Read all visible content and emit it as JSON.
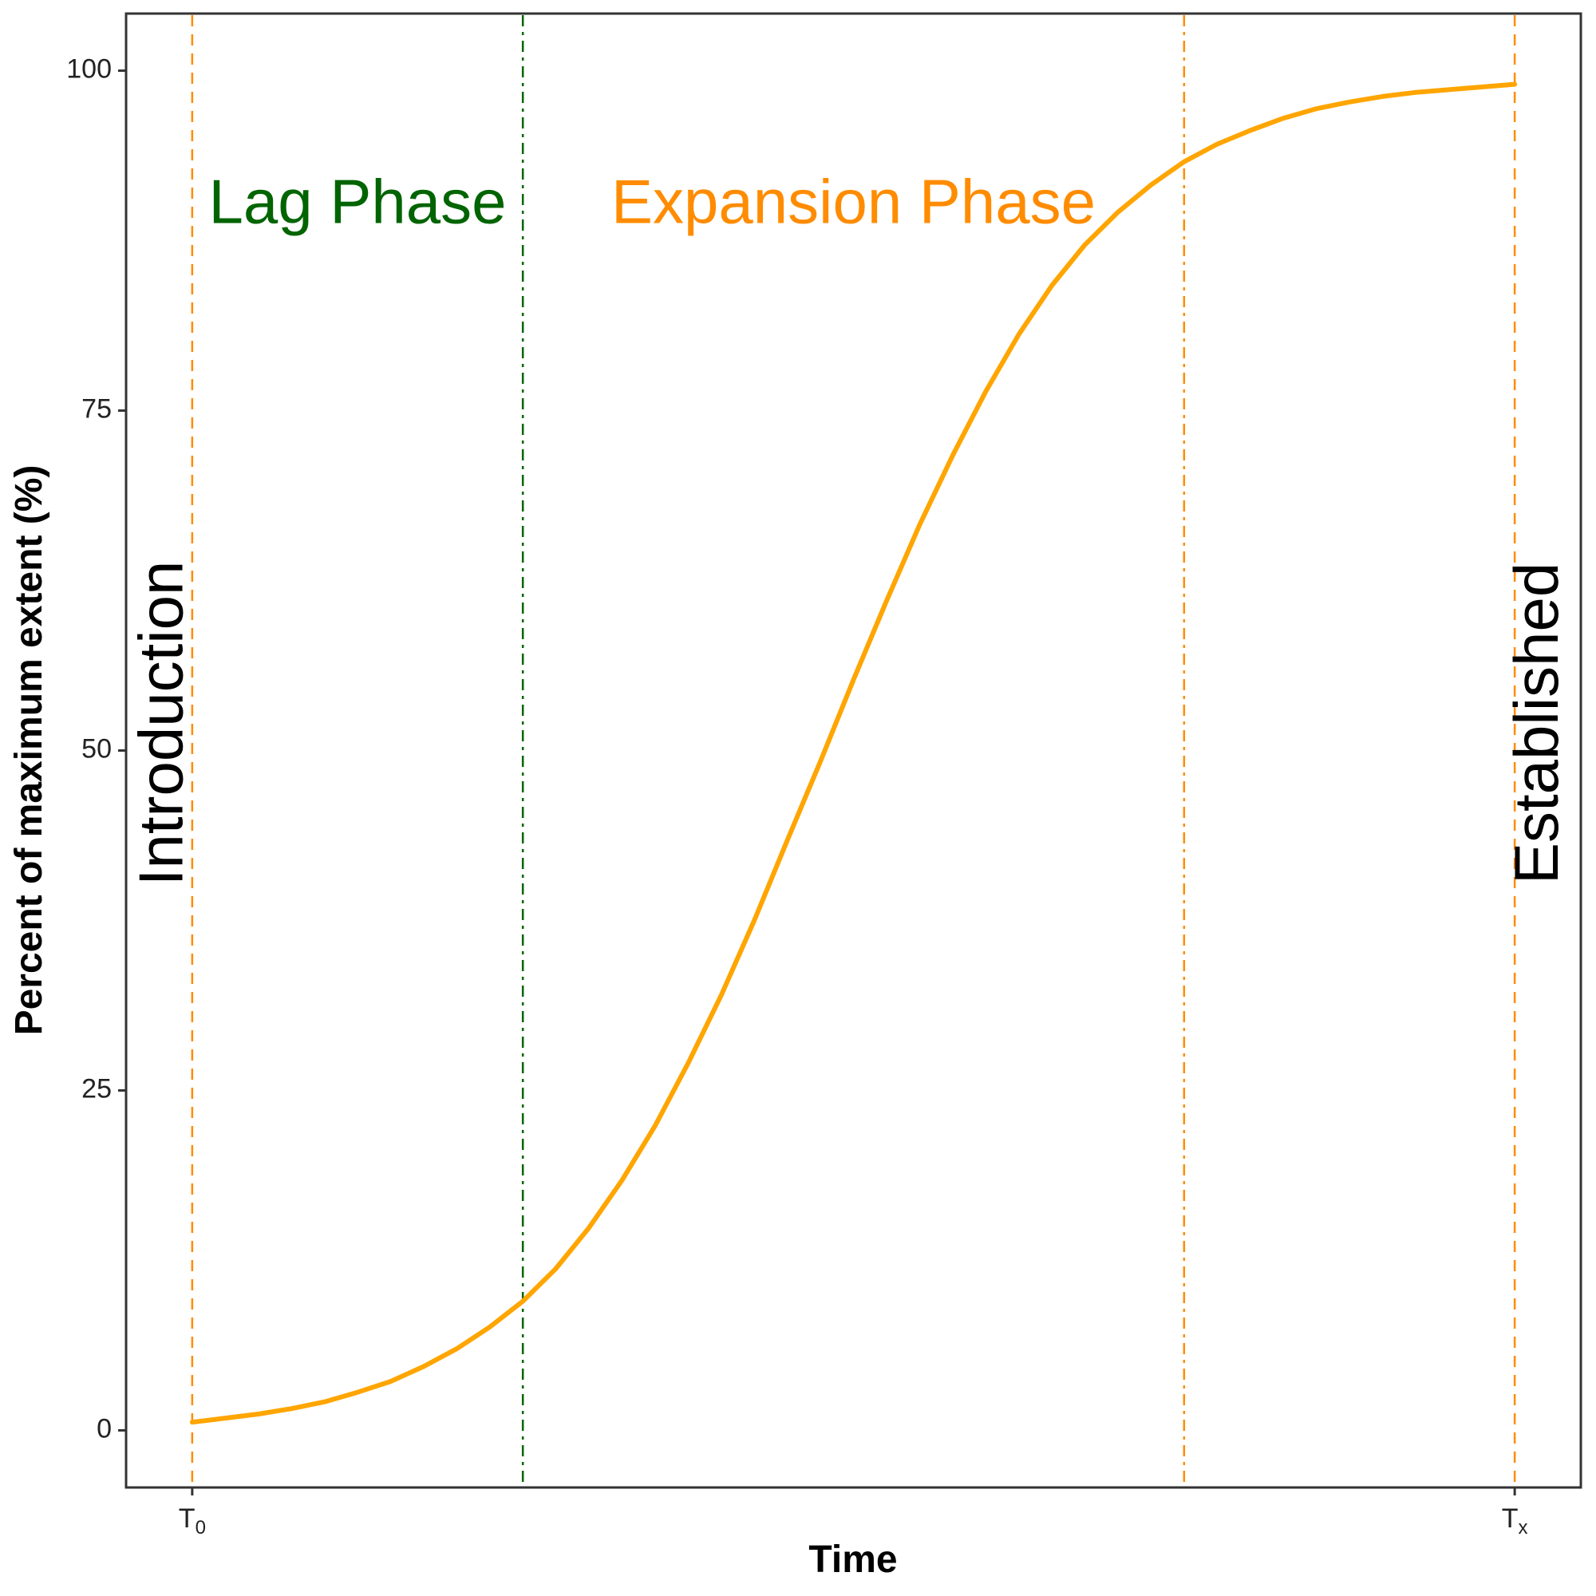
{
  "chart_data": {
    "type": "line",
    "title": "",
    "xlabel": "Time",
    "ylabel": "Percent of maximum extent (%)",
    "ylim": [
      -4.2,
      104.2
    ],
    "yticks": [
      "0",
      "25",
      "50",
      "75",
      "100"
    ],
    "xticks": [
      {
        "main": "T",
        "sub": "0"
      },
      {
        "main": "T",
        "sub": "x"
      }
    ],
    "xlim": [
      -0.05,
      1.05
    ],
    "grid": false,
    "series": [
      {
        "color": "#FFA500",
        "x": [
          0,
          0.025,
          0.05,
          0.075,
          0.1,
          0.125,
          0.15,
          0.175,
          0.2,
          0.225,
          0.25,
          0.275,
          0.3,
          0.325,
          0.35,
          0.375,
          0.4,
          0.425,
          0.45,
          0.475,
          0.5,
          0.525,
          0.55,
          0.575,
          0.6,
          0.625,
          0.65,
          0.675,
          0.7,
          0.725,
          0.75,
          0.775,
          0.8,
          0.825,
          0.85,
          0.875,
          0.9,
          0.925,
          0.95,
          0.975,
          1.0
        ],
        "y": [
          0.6,
          0.9,
          1.2,
          1.6,
          2.1,
          2.8,
          3.6,
          4.7,
          6.0,
          7.6,
          9.5,
          11.9,
          14.9,
          18.4,
          22.4,
          27.0,
          32.0,
          37.5,
          43.4,
          49.2,
          55.2,
          61.0,
          66.6,
          71.7,
          76.4,
          80.6,
          84.2,
          87.2,
          89.6,
          91.6,
          93.3,
          94.6,
          95.6,
          96.5,
          97.2,
          97.7,
          98.1,
          98.4,
          98.6,
          98.8,
          99.0
        ]
      }
    ],
    "vlines": [
      {
        "x": 0,
        "color": "#FF8C00",
        "style": "dashed"
      },
      {
        "x": 0.25,
        "color": "#006400",
        "style": "dotdash"
      },
      {
        "x": 0.75,
        "color": "#FF8C00",
        "style": "dotdash"
      },
      {
        "x": 1.0,
        "color": "#FF8C00",
        "style": "dashed"
      }
    ],
    "annotations": [
      {
        "text": "Lag Phase",
        "x": 0.125,
        "y": 90,
        "color": "#006400",
        "rotation": 0
      },
      {
        "text": "Expansion Phase",
        "x": 0.5,
        "y": 90,
        "color": "#FF8C00",
        "rotation": 0
      },
      {
        "text": "Introduction",
        "x": -0.02,
        "y": 52,
        "color": "#000000",
        "rotation": -90
      },
      {
        "text": "Established",
        "x": 1.02,
        "y": 52,
        "color": "#000000",
        "rotation": -90
      }
    ]
  }
}
